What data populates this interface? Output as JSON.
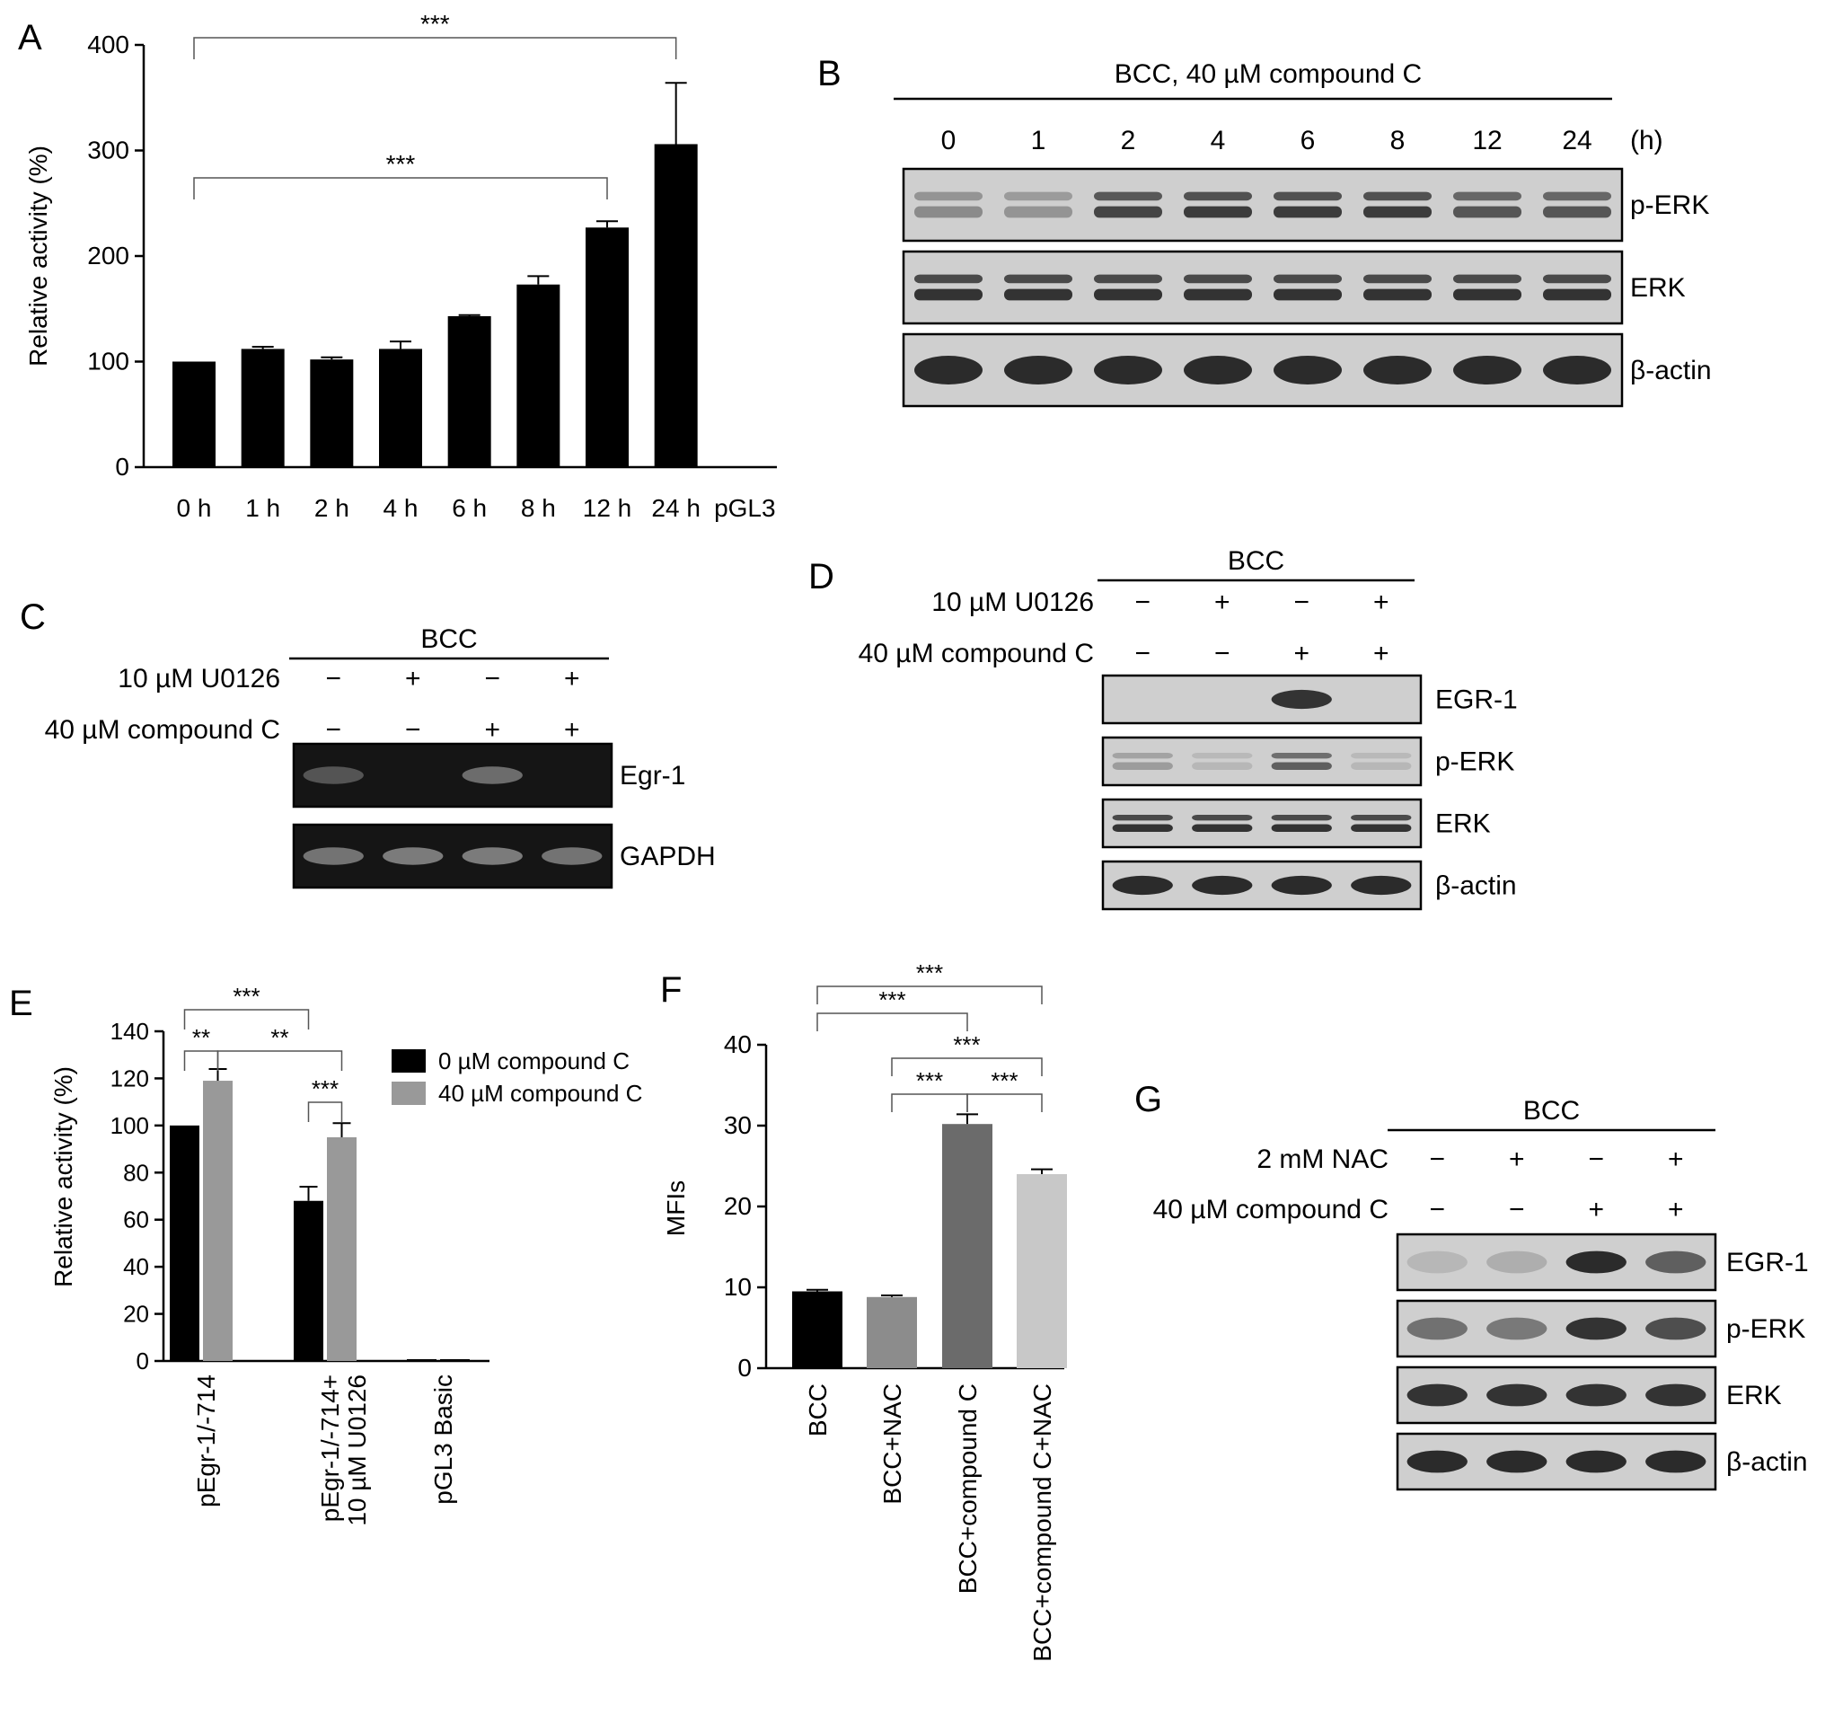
{
  "panels": {
    "A": "A",
    "B": "B",
    "C": "C",
    "D": "D",
    "E": "E",
    "F": "F",
    "G": "G"
  },
  "chart_data": [
    {
      "panel": "A",
      "type": "bar",
      "categories": [
        "0 h",
        "1 h",
        "2 h",
        "4 h",
        "6 h",
        "8 h",
        "12 h",
        "24 h",
        "pGL3"
      ],
      "values": [
        100,
        112,
        102,
        112,
        143,
        173,
        227,
        306,
        0
      ],
      "errors": [
        0,
        2,
        2,
        7,
        1,
        8,
        6,
        58,
        0
      ],
      "xlabel": "",
      "ylabel": "Relative activity (%)",
      "ylim": [
        0,
        400
      ],
      "yticks": [
        0,
        100,
        200,
        300,
        400
      ],
      "significance": [
        {
          "from": "0 h",
          "to": "24 h",
          "label": "***"
        },
        {
          "from": "0 h",
          "to": "12 h",
          "label": "***"
        }
      ],
      "bar_color": "#000000"
    },
    {
      "panel": "E",
      "type": "bar",
      "categories": [
        "pEgr-1/-714",
        "pEgr-1/-714+\n10 µM U0126",
        "pGL3 Basic"
      ],
      "series": [
        {
          "name": "0 µM compound C",
          "color": "#000000",
          "values": [
            100,
            68,
            0
          ],
          "errors": [
            0,
            6,
            0
          ]
        },
        {
          "name": "40 µM compound C",
          "color": "#999999",
          "values": [
            119,
            95,
            0
          ],
          "errors": [
            5,
            6,
            0
          ]
        }
      ],
      "xlabel": "",
      "ylabel": "Relative activity (%)",
      "ylim": [
        0,
        140
      ],
      "yticks": [
        0,
        20,
        40,
        60,
        80,
        100,
        120,
        140
      ],
      "legend": "top-right",
      "significance": [
        {
          "label": "***",
          "note": "pEgr-1/-714 0 µM vs pEgr-1/-714+ 0 µM"
        },
        {
          "label": "**",
          "note": "pEgr-1/-714 0 µM vs 40 µM"
        },
        {
          "label": "**",
          "note": "pEgr-1/-714 40 µM vs pEgr-1/-714+ 40 µM"
        },
        {
          "label": "***",
          "note": "pEgr-1/-714+ 0 µM vs 40 µM"
        }
      ]
    },
    {
      "panel": "F",
      "type": "bar",
      "categories": [
        "BCC",
        "BCC+NAC",
        "BCC+compound C",
        "BCC+compound C+NAC"
      ],
      "values": [
        9.5,
        8.8,
        30.2,
        24.0
      ],
      "errors": [
        0.2,
        0.2,
        1.2,
        0.6
      ],
      "colors": [
        "#000000",
        "#8c8c8c",
        "#6b6b6b",
        "#c8c8c8"
      ],
      "xlabel": "",
      "ylabel": "MFIs",
      "ylim": [
        0,
        40
      ],
      "yticks": [
        0,
        10,
        20,
        30,
        40
      ],
      "significance": [
        {
          "from": 0,
          "to": 3,
          "label": "***"
        },
        {
          "from": 0,
          "to": 2,
          "label": "***"
        },
        {
          "from": 1,
          "to": 3,
          "label": "***"
        },
        {
          "from": 1,
          "to": 2,
          "label": "***"
        },
        {
          "from": 2,
          "to": 3,
          "label": "***"
        }
      ]
    }
  ],
  "blots": {
    "B": {
      "header": "BCC, 40 µM compound C",
      "time_labels": [
        "0",
        "1",
        "2",
        "4",
        "6",
        "8",
        "12",
        "24"
      ],
      "unit": "(h)",
      "rows": [
        {
          "label": "p-ERK",
          "intensities": [
            0.35,
            0.3,
            0.75,
            0.8,
            0.8,
            0.8,
            0.65,
            0.65
          ],
          "double": true
        },
        {
          "label": "ERK",
          "intensities": [
            0.85,
            0.85,
            0.85,
            0.85,
            0.85,
            0.85,
            0.85,
            0.85
          ],
          "double": true
        },
        {
          "label": "β-actin",
          "intensities": [
            0.9,
            0.9,
            0.9,
            0.9,
            0.9,
            0.9,
            0.9,
            0.9
          ],
          "double": false
        }
      ]
    },
    "C": {
      "header": "BCC",
      "row1_label": "10 µM U0126",
      "row1_signs": [
        "−",
        "+",
        "−",
        "+"
      ],
      "row2_label": "40 µM compound C",
      "row2_signs": [
        "−",
        "−",
        "+",
        "+"
      ],
      "rows": [
        {
          "label": "Egr-1",
          "intensities": [
            0.3,
            0.0,
            0.45,
            0.0
          ]
        },
        {
          "label": "GAPDH",
          "intensities": [
            0.5,
            0.55,
            0.55,
            0.5
          ]
        }
      ]
    },
    "D": {
      "header": "BCC",
      "row1_label": "10 µM U0126",
      "row1_signs": [
        "−",
        "+",
        "−",
        "+"
      ],
      "row2_label": "40 µM compound C",
      "row2_signs": [
        "−",
        "−",
        "+",
        "+"
      ],
      "rows": [
        {
          "label": "EGR-1",
          "intensities": [
            0.0,
            0.0,
            0.85,
            0.0
          ],
          "double": false
        },
        {
          "label": "p-ERK",
          "intensities": [
            0.25,
            0.1,
            0.6,
            0.1
          ],
          "double": true
        },
        {
          "label": "ERK",
          "intensities": [
            0.85,
            0.85,
            0.85,
            0.85
          ],
          "double": true
        },
        {
          "label": "β-actin",
          "intensities": [
            0.9,
            0.9,
            0.9,
            0.9
          ],
          "double": false
        }
      ]
    },
    "G": {
      "header": "BCC",
      "row1_label": "2 mM NAC",
      "row1_signs": [
        "−",
        "+",
        "−",
        "+"
      ],
      "row2_label": "40 µM compound C",
      "row2_signs": [
        "−",
        "−",
        "+",
        "+"
      ],
      "rows": [
        {
          "label": "EGR-1",
          "intensities": [
            0.1,
            0.15,
            0.9,
            0.6
          ],
          "double": false
        },
        {
          "label": "p-ERK",
          "intensities": [
            0.5,
            0.45,
            0.85,
            0.7
          ],
          "double": false
        },
        {
          "label": "ERK",
          "intensities": [
            0.85,
            0.85,
            0.85,
            0.85
          ],
          "double": false
        },
        {
          "label": "β-actin",
          "intensities": [
            0.9,
            0.9,
            0.9,
            0.9
          ],
          "double": false
        }
      ]
    }
  }
}
